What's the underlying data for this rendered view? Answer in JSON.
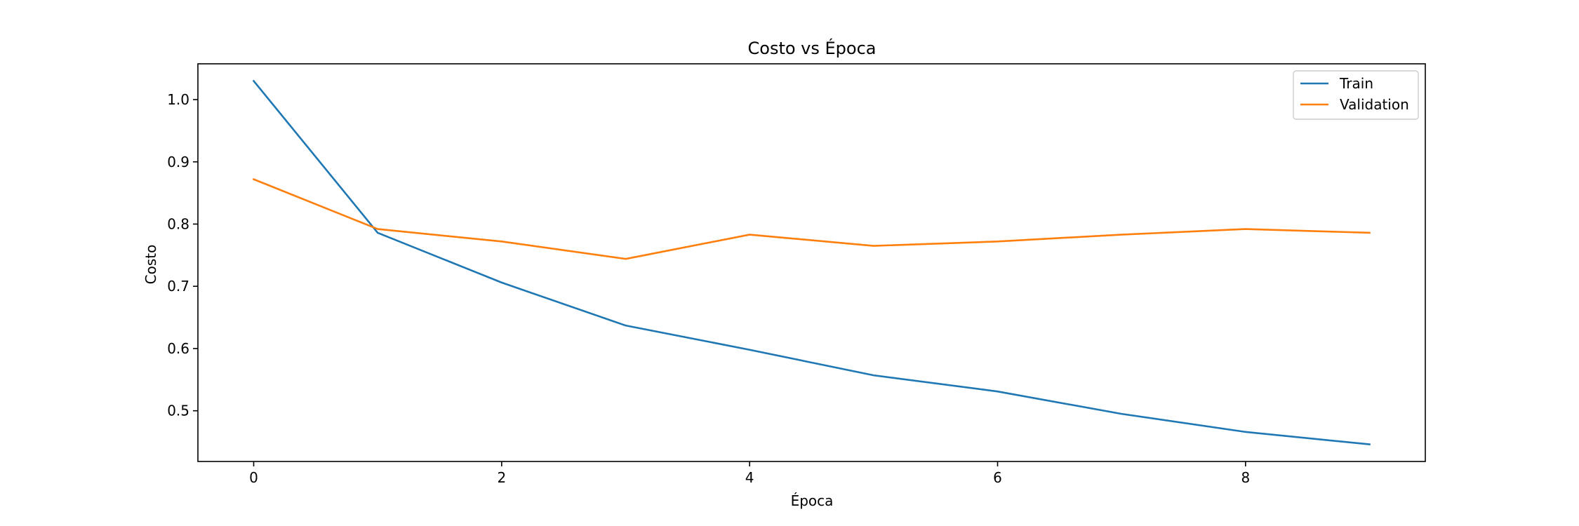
{
  "chart_data": {
    "type": "line",
    "title": "Costo vs Época",
    "xlabel": "Época",
    "ylabel": "Costo",
    "xlim": [
      -0.45,
      9.45
    ],
    "ylim": [
      0.4185,
      1.0575
    ],
    "xticks": [
      0,
      2,
      4,
      6,
      8
    ],
    "yticks": [
      0.5,
      0.6,
      0.7,
      0.8,
      0.9,
      1.0
    ],
    "ytick_labels": [
      "0.5",
      "0.6",
      "0.7",
      "0.8",
      "0.9",
      "1.0"
    ],
    "grid": false,
    "legend_position": "top-right",
    "x": [
      0,
      1,
      2,
      3,
      4,
      5,
      6,
      7,
      8,
      9
    ],
    "series": [
      {
        "name": "Train",
        "color": "#1f77b4",
        "values": [
          1.03,
          0.786,
          0.706,
          0.637,
          0.598,
          0.557,
          0.531,
          0.495,
          0.466,
          0.446
        ]
      },
      {
        "name": "Validation",
        "color": "#ff7f0e",
        "values": [
          0.872,
          0.792,
          0.772,
          0.744,
          0.783,
          0.765,
          0.772,
          0.783,
          0.792,
          0.786
        ]
      }
    ]
  }
}
